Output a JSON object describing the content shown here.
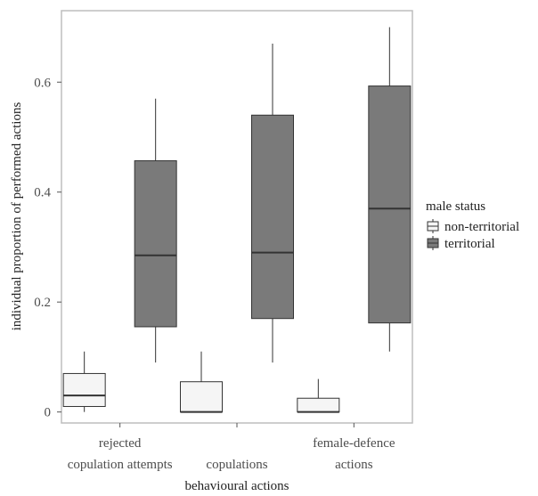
{
  "chart_data": {
    "type": "boxplot",
    "title": "",
    "xlabel": "behavioural actions",
    "ylabel": "individual proportion of performed actions",
    "ylim": [
      -0.02,
      0.73
    ],
    "yticks": [
      0,
      0.2,
      0.4,
      0.6
    ],
    "ytick_labels": [
      "0",
      "0.2",
      "0.4",
      "0.6"
    ],
    "grid": false,
    "categories": [
      [
        "rejected",
        "copulation attempts"
      ],
      [
        "copulations"
      ],
      [
        "female-defence",
        "actions"
      ]
    ],
    "legend": {
      "title": "male status",
      "placement": "right"
    },
    "series": [
      {
        "name": "non-territorial",
        "color": "#f5f5f5",
        "boxes": [
          {
            "min": 0.0,
            "q1": 0.01,
            "median": 0.03,
            "q3": 0.07,
            "max": 0.11
          },
          {
            "min": 0.0,
            "q1": 0.0,
            "median": 0.0,
            "q3": 0.055,
            "max": 0.11
          },
          {
            "min": 0.0,
            "q1": 0.0,
            "median": 0.0,
            "q3": 0.025,
            "max": 0.06
          }
        ]
      },
      {
        "name": "territorial",
        "color": "#7a7a7a",
        "boxes": [
          {
            "min": 0.09,
            "q1": 0.155,
            "median": 0.285,
            "q3": 0.457,
            "max": 0.57
          },
          {
            "min": 0.09,
            "q1": 0.17,
            "median": 0.29,
            "q3": 0.54,
            "max": 0.67
          },
          {
            "min": 0.11,
            "q1": 0.162,
            "median": 0.37,
            "q3": 0.593,
            "max": 0.7
          }
        ]
      }
    ]
  }
}
